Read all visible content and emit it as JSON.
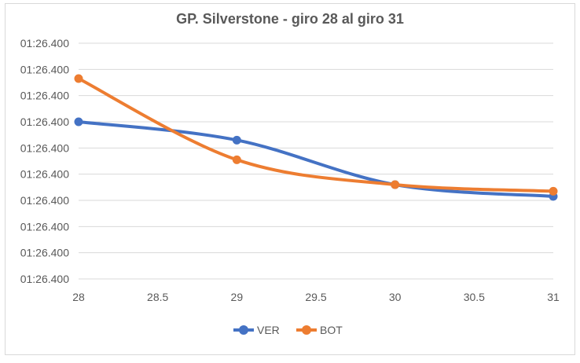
{
  "chart_data": {
    "type": "line",
    "title": "GP. Silverstone - giro 28 al giro 31",
    "xlabel": "",
    "ylabel": "",
    "x_ticks": [
      "28",
      "28.5",
      "29",
      "29.5",
      "30",
      "30.5",
      "31"
    ],
    "xlim": [
      28,
      31
    ],
    "y_ticks": [
      "01:26.400",
      "01:26.400",
      "01:26.400",
      "01:26.400",
      "01:26.400",
      "01:26.400",
      "01:26.400",
      "01:26.400",
      "01:26.400",
      "01:26.400"
    ],
    "ylim": [
      0,
      9
    ],
    "grid": true,
    "smooth": true,
    "legend_position": "bottom",
    "series": [
      {
        "name": "VER",
        "color": "#4472C4",
        "points": [
          {
            "x": 28,
            "y": 6.0
          },
          {
            "x": 29,
            "y": 5.3
          },
          {
            "x": 30,
            "y": 3.6
          },
          {
            "x": 31,
            "y": 3.15
          }
        ]
      },
      {
        "name": "BOT",
        "color": "#ED7D31",
        "points": [
          {
            "x": 28,
            "y": 7.65
          },
          {
            "x": 29,
            "y": 4.55
          },
          {
            "x": 30,
            "y": 3.6
          },
          {
            "x": 31,
            "y": 3.35
          }
        ]
      }
    ]
  }
}
